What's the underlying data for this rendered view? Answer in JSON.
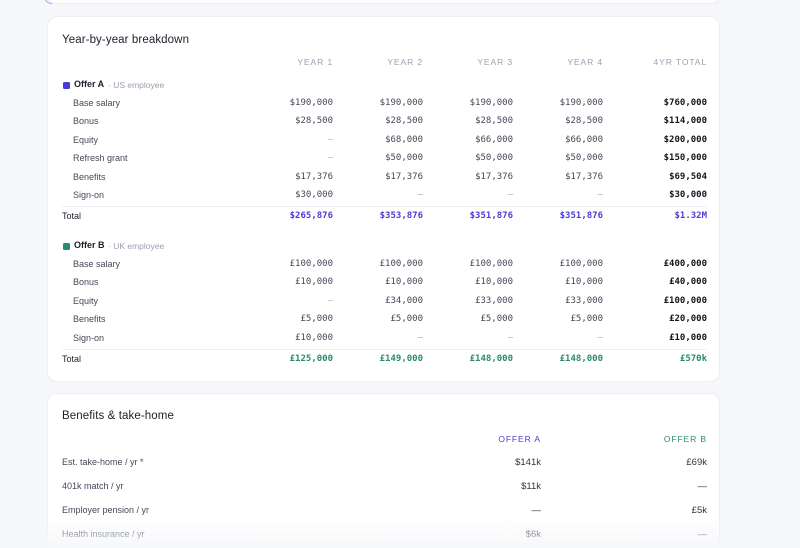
{
  "colors": {
    "offer_a": "#4a3bd6",
    "offer_b": "#2b8a72"
  },
  "breakdown": {
    "title": "Year-by-year breakdown",
    "columns": [
      "YEAR 1",
      "YEAR 2",
      "YEAR 3",
      "YEAR 4",
      "4YR TOTAL"
    ],
    "total_label": "Total",
    "offers": [
      {
        "name": "Offer A",
        "subtitle": "· US employee",
        "rows": [
          {
            "label": "Base salary",
            "values": [
              "$190,000",
              "$190,000",
              "$190,000",
              "$190,000"
            ],
            "total": "$760,000"
          },
          {
            "label": "Bonus",
            "values": [
              "$28,500",
              "$28,500",
              "$28,500",
              "$28,500"
            ],
            "total": "$114,000"
          },
          {
            "label": "Equity",
            "values": [
              "—",
              "$68,000",
              "$66,000",
              "$66,000"
            ],
            "total": "$200,000"
          },
          {
            "label": "Refresh grant",
            "values": [
              "—",
              "$50,000",
              "$50,000",
              "$50,000"
            ],
            "total": "$150,000"
          },
          {
            "label": "Benefits",
            "values": [
              "$17,376",
              "$17,376",
              "$17,376",
              "$17,376"
            ],
            "total": "$69,504"
          },
          {
            "label": "Sign-on",
            "values": [
              "$30,000",
              "—",
              "—",
              "—"
            ],
            "total": "$30,000"
          }
        ],
        "totals": [
          "$265,876",
          "$353,876",
          "$351,876",
          "$351,876",
          "$1.32M"
        ]
      },
      {
        "name": "Offer B",
        "subtitle": "· UK employee",
        "rows": [
          {
            "label": "Base salary",
            "values": [
              "£100,000",
              "£100,000",
              "£100,000",
              "£100,000"
            ],
            "total": "£400,000"
          },
          {
            "label": "Bonus",
            "values": [
              "£10,000",
              "£10,000",
              "£10,000",
              "£10,000"
            ],
            "total": "£40,000"
          },
          {
            "label": "Equity",
            "values": [
              "—",
              "£34,000",
              "£33,000",
              "£33,000"
            ],
            "total": "£100,000"
          },
          {
            "label": "Benefits",
            "values": [
              "£5,000",
              "£5,000",
              "£5,000",
              "£5,000"
            ],
            "total": "£20,000"
          },
          {
            "label": "Sign-on",
            "values": [
              "£10,000",
              "—",
              "—",
              "—"
            ],
            "total": "£10,000"
          }
        ],
        "totals": [
          "£125,000",
          "£149,000",
          "£148,000",
          "£148,000",
          "£570k"
        ]
      }
    ]
  },
  "benefits": {
    "title": "Benefits & take-home",
    "columns": [
      "OFFER A",
      "OFFER B"
    ],
    "rows": [
      {
        "label": "Est. take-home / yr *",
        "a": "$141k",
        "b": "£69k"
      },
      {
        "label": "401k match / yr",
        "a": "$11k",
        "b": "—"
      },
      {
        "label": "Employer pension / yr",
        "a": "—",
        "b": "£5k"
      },
      {
        "label": "Health insurance / yr",
        "a": "$6k",
        "b": "—"
      }
    ]
  }
}
